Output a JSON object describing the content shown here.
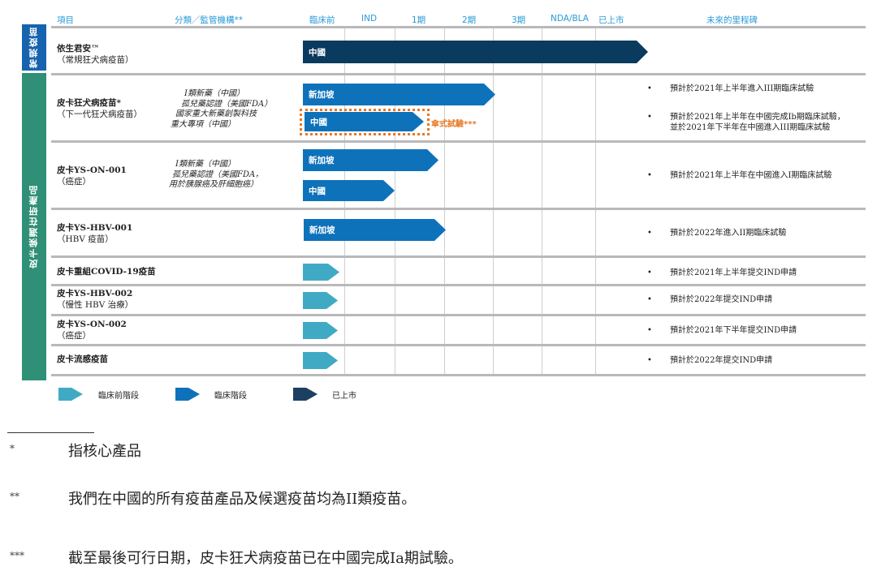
{
  "header": {
    "item": "項目",
    "category": "分類／監管機構**",
    "stages": [
      "臨床前",
      "IND",
      "1期",
      "2期",
      "3期",
      "NDA/BLA",
      "已上市"
    ],
    "milestones": "未來的里程碑"
  },
  "groups": {
    "conventional": "常規疫苗",
    "pipeline": "皮卡候選在研產品"
  },
  "products": [
    {
      "name": "依生君安™",
      "sub": "（常規狂犬病疫苗）",
      "bars": [
        {
          "label": "中國",
          "type": "marketed",
          "stage": "已上市"
        }
      ],
      "milestones": []
    },
    {
      "name": "皮卡狂犬病疫苗*",
      "sub": "（下一代狂犬病疫苗）",
      "category": [
        "I類新藥（中國）",
        "孤兒藥認證（美國FDA）",
        "國家重大新藥創製科技",
        "重大專項（中國）"
      ],
      "bars": [
        {
          "label": "新加坡",
          "type": "clinical",
          "stage": "2期"
        },
        {
          "label": "中國",
          "type": "clinical",
          "stage": "1期",
          "note": "傘式試驗***"
        }
      ],
      "milestones": [
        "預計於2021年上半年進入III期臨床試驗",
        "預計於2021年上半年在中國完成Ib期臨床試驗，",
        "並於2021年下半年在中國進入III期臨床試驗"
      ]
    },
    {
      "name": "皮卡YS-ON-001",
      "sub": "（癌症）",
      "category": [
        "I類新藥（中國）",
        "孤兒藥認證（美國FDA，",
        "用於胰腺癌及肝細胞癌）"
      ],
      "bars": [
        {
          "label": "新加坡",
          "type": "clinical",
          "stage": "1期"
        },
        {
          "label": "中國",
          "type": "clinical",
          "stage": "IND"
        }
      ],
      "milestones": [
        "預計於2021年上半年在中國進入I期臨床試驗"
      ]
    },
    {
      "name": "皮卡YS-HBV-001",
      "sub": "（HBV 疫苗）",
      "bars": [
        {
          "label": "新加坡",
          "type": "clinical",
          "stage": "1期"
        }
      ],
      "milestones": [
        "預計於2022年進入II期臨床試驗"
      ]
    },
    {
      "name": "皮卡重組COVID-19疫苗",
      "bars": [
        {
          "type": "preclinical",
          "stage": "臨床前"
        }
      ],
      "milestones": [
        "預計於2021年上半年提交IND申請"
      ]
    },
    {
      "name": "皮卡YS-HBV-002",
      "sub": "（慢性 HBV 治療）",
      "bars": [
        {
          "type": "preclinical",
          "stage": "臨床前"
        }
      ],
      "milestones": [
        "預計於2022年提交IND申請"
      ]
    },
    {
      "name": "皮卡YS-ON-002",
      "sub": "（癌症）",
      "bars": [
        {
          "type": "preclinical",
          "stage": "臨床前"
        }
      ],
      "milestones": [
        "預計於2021年下半年提交IND申請"
      ]
    },
    {
      "name": "皮卡流感疫苗",
      "bars": [
        {
          "type": "preclinical",
          "stage": "臨床前"
        }
      ],
      "milestones": [
        "預計於2022年提交IND申請"
      ]
    }
  ],
  "legend": [
    "臨床前階段",
    "臨床階段",
    "已上市"
  ],
  "colors": {
    "preclinical": "#40aac4",
    "clinical": "#0e72bb",
    "marketed": "#0b3a5f",
    "header": "#2a9bd6",
    "note": "#e87722"
  },
  "footnotes": [
    {
      "mark": "*",
      "text": "指核心產品"
    },
    {
      "mark": "**",
      "text": "我們在中國的所有疫苗產品及候選疫苗均為II類疫苗。"
    },
    {
      "mark": "***",
      "text": "截至最後可行日期，皮卡狂犬病疫苗已在中國完成Ia期試驗。"
    }
  ]
}
